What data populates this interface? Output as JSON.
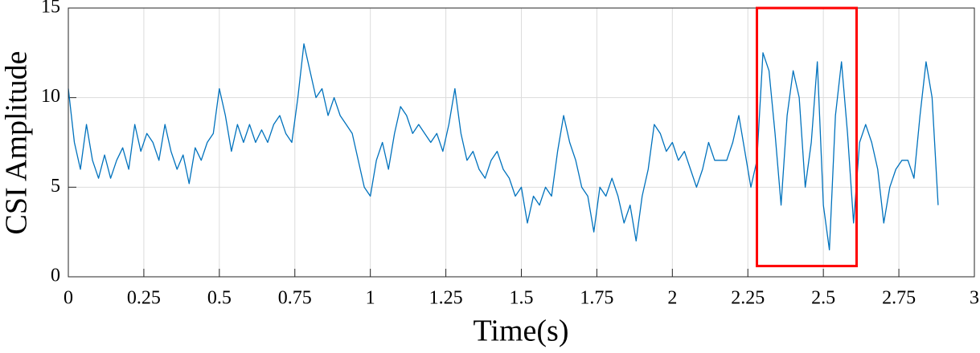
{
  "chart_data": {
    "type": "line",
    "xlabel": "Time(s)",
    "ylabel": "CSI Amplitude",
    "x": [
      0,
      0.02,
      0.04,
      0.06,
      0.08,
      0.1,
      0.12,
      0.14,
      0.16,
      0.18,
      0.2,
      0.22,
      0.24,
      0.26,
      0.28,
      0.3,
      0.32,
      0.34,
      0.36,
      0.38,
      0.4,
      0.42,
      0.44,
      0.46,
      0.48,
      0.5,
      0.52,
      0.54,
      0.56,
      0.58,
      0.6,
      0.62,
      0.64,
      0.66,
      0.68,
      0.7,
      0.72,
      0.74,
      0.76,
      0.78,
      0.8,
      0.82,
      0.84,
      0.86,
      0.88,
      0.9,
      0.92,
      0.94,
      0.96,
      0.98,
      1,
      1.02,
      1.04,
      1.06,
      1.08,
      1.1,
      1.12,
      1.14,
      1.16,
      1.18,
      1.2,
      1.22,
      1.24,
      1.26,
      1.28,
      1.3,
      1.32,
      1.34,
      1.36,
      1.38,
      1.4,
      1.42,
      1.44,
      1.46,
      1.48,
      1.5,
      1.52,
      1.54,
      1.56,
      1.58,
      1.6,
      1.62,
      1.64,
      1.66,
      1.68,
      1.7,
      1.72,
      1.74,
      1.76,
      1.78,
      1.8,
      1.82,
      1.84,
      1.86,
      1.88,
      1.9,
      1.92,
      1.94,
      1.96,
      1.98,
      2,
      2.02,
      2.04,
      2.06,
      2.08,
      2.1,
      2.12,
      2.14,
      2.16,
      2.18,
      2.2,
      2.22,
      2.24,
      2.26,
      2.28,
      2.3,
      2.32,
      2.34,
      2.36,
      2.38,
      2.4,
      2.42,
      2.44,
      2.46,
      2.48,
      2.5,
      2.52,
      2.54,
      2.56,
      2.58,
      2.6,
      2.62,
      2.64,
      2.66,
      2.68,
      2.7,
      2.72,
      2.74,
      2.76,
      2.78,
      2.8,
      2.82,
      2.84,
      2.86,
      2.88
    ],
    "values": [
      10.5,
      7.5,
      6,
      8.5,
      6.5,
      5.5,
      6.8,
      5.5,
      6.5,
      7.2,
      6,
      8.5,
      7,
      8,
      7.5,
      6.5,
      8.5,
      7,
      6,
      6.8,
      5.2,
      7.2,
      6.5,
      7.5,
      8,
      10.5,
      9,
      7,
      8.5,
      7.5,
      8.5,
      7.5,
      8.2,
      7.5,
      8.5,
      9,
      8,
      7.5,
      10,
      13,
      11.5,
      10,
      10.5,
      9,
      10,
      9,
      8.5,
      8,
      6.5,
      5,
      4.5,
      6.5,
      7.5,
      6,
      8,
      9.5,
      9,
      8,
      8.5,
      8,
      7.5,
      8,
      7,
      8.5,
      10.5,
      8,
      6.5,
      7,
      6,
      5.5,
      6.5,
      7,
      6,
      5.5,
      4.5,
      5,
      3,
      4.5,
      4,
      5,
      4.5,
      7,
      9,
      7.5,
      6.5,
      5,
      4.5,
      2.5,
      5,
      4.5,
      5.5,
      4.5,
      3,
      4,
      2,
      4.5,
      6,
      8.5,
      8,
      7,
      7.5,
      6.5,
      7,
      6,
      5,
      6,
      7.5,
      6.5,
      6.5,
      6.5,
      7.5,
      9,
      7,
      5,
      6.5,
      12.5,
      11.5,
      8,
      4,
      9,
      11.5,
      10,
      5,
      7.5,
      12,
      4,
      1.5,
      9,
      12,
      8,
      3,
      7.5,
      8.5,
      7.5,
      6,
      3,
      5,
      6,
      6.5,
      6.5,
      5.5,
      9,
      12,
      10,
      4
    ],
    "color": "#0072bd",
    "xlim": [
      0,
      3
    ],
    "xticks": [
      0,
      0.25,
      0.5,
      0.75,
      1,
      1.25,
      1.5,
      1.75,
      2,
      2.25,
      2.5,
      2.75,
      3
    ],
    "ylim": [
      0,
      15
    ],
    "yticks": [
      0,
      5,
      10,
      15
    ],
    "grid": true,
    "highlight_box": {
      "x": [
        2.28,
        2.61
      ],
      "y": [
        0.6,
        15
      ],
      "color": "#ff0000"
    }
  }
}
